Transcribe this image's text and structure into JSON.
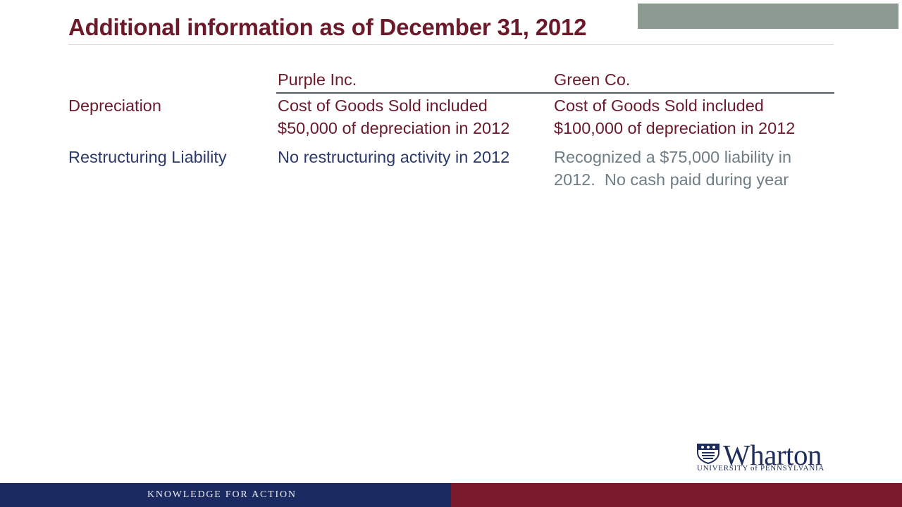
{
  "slide": {
    "title": "Additional information as of December 31, 2012"
  },
  "table": {
    "headers": {
      "col1": "Purple Inc.",
      "col2": "Green Co."
    },
    "rows": [
      {
        "label": "Depreciation",
        "col1": [
          "Cost of Goods Sold included",
          "$50,000 of depreciation in 2012"
        ],
        "col2": [
          "Cost of Goods Sold included",
          "$100,000 of depreciation in 2012"
        ]
      },
      {
        "label": "Restructuring Liability",
        "col1": [
          "No restructuring activity in 2012"
        ],
        "col2": [
          "Recognized a $75,000 liability in",
          "2012.  No cash paid during year"
        ]
      }
    ]
  },
  "logo": {
    "name": "Wharton",
    "subtitle": "UNIVERSITY of PENNSYLVANIA"
  },
  "footer": {
    "tagline": "KNOWLEDGE FOR ACTION"
  },
  "colors": {
    "maroon": "#6b1a2a",
    "navy": "#1c2a62",
    "footer_red": "#7a1a2c",
    "gray_block": "#8c9a92"
  }
}
